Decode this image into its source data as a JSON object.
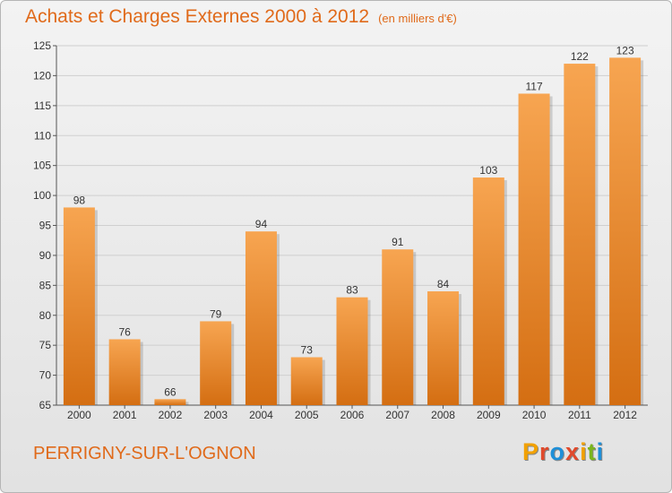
{
  "header": {
    "title": "Achats et Charges Externes 2000 à 2012",
    "subtitle": "(en milliers d'€)"
  },
  "footer": {
    "town": "PERRIGNY-SUR-L'OGNON",
    "logo": "Proxiti"
  },
  "colors": {
    "bar_top": "#f7a551",
    "bar_bottom": "#d46e12",
    "title": "#e06a1a",
    "logo_letters": [
      "#f2a100",
      "#e04a2c",
      "#1e8fd8",
      "#e04a2c",
      "#f2a100",
      "#7ab51d",
      "#1e8fd8"
    ]
  },
  "chart_data": {
    "type": "bar",
    "title": "Achats et Charges Externes 2000 à 2012",
    "subtitle": "(en milliers d'€)",
    "categories": [
      "2000",
      "2001",
      "2002",
      "2003",
      "2004",
      "2005",
      "2006",
      "2007",
      "2008",
      "2009",
      "2010",
      "2011",
      "2012"
    ],
    "values": [
      98,
      76,
      66,
      79,
      94,
      73,
      83,
      91,
      84,
      103,
      117,
      122,
      123
    ],
    "ylim": [
      65,
      125
    ],
    "yticks": [
      65,
      70,
      75,
      80,
      85,
      90,
      95,
      100,
      105,
      110,
      115,
      120,
      125
    ],
    "grid": true,
    "legend": "none"
  }
}
